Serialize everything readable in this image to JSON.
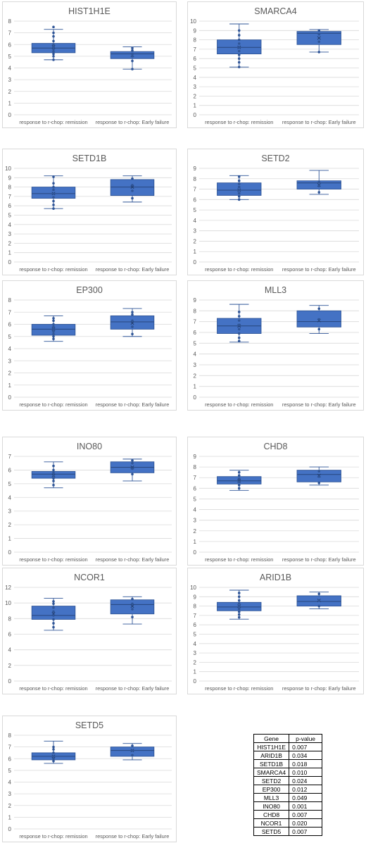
{
  "chart_data": [
    {
      "type": "box",
      "title": "HIST1H1E",
      "categories": [
        "response to r-chop: remission",
        "response to r-chop: Early failure"
      ],
      "ylim": [
        0,
        8
      ],
      "yticks": [
        0,
        1,
        2,
        3,
        4,
        5,
        6,
        7,
        8
      ],
      "boxes": [
        {
          "min": 4.7,
          "q1": 5.3,
          "median": 5.7,
          "q3": 6.1,
          "max": 7.3,
          "mean": 5.8,
          "points": [
            4.7,
            5.0,
            5.2,
            5.4,
            5.6,
            5.8,
            6.0,
            6.3,
            6.7,
            7.0,
            7.5
          ]
        },
        {
          "min": 3.9,
          "q1": 4.8,
          "median": 5.2,
          "q3": 5.4,
          "max": 5.8,
          "mean": 5.1,
          "points": [
            3.9,
            4.6,
            5.0,
            5.2,
            5.5,
            5.7
          ]
        }
      ]
    },
    {
      "type": "box",
      "title": "SMARCA4",
      "categories": [
        "response to r-chop: remission",
        "response to r-chop: Early failure"
      ],
      "ylim": [
        0,
        10
      ],
      "yticks": [
        0,
        1,
        2,
        3,
        4,
        5,
        6,
        7,
        8,
        9,
        10
      ],
      "boxes": [
        {
          "min": 5.1,
          "q1": 6.5,
          "median": 7.2,
          "q3": 8.0,
          "max": 9.7,
          "mean": 7.2,
          "points": [
            5.1,
            5.6,
            6.0,
            6.4,
            6.8,
            7.2,
            7.6,
            8.0,
            8.5,
            9.0
          ]
        },
        {
          "min": 6.7,
          "q1": 7.5,
          "median": 8.7,
          "q3": 8.9,
          "max": 9.1,
          "mean": 8.2,
          "points": [
            6.7,
            7.8,
            8.6,
            9.0
          ]
        }
      ]
    },
    {
      "type": "box",
      "title": "SETD1B",
      "categories": [
        "response to r-chop: remission",
        "response to r-chop: Early failure"
      ],
      "ylim": [
        0,
        10
      ],
      "yticks": [
        0,
        1,
        2,
        3,
        4,
        5,
        6,
        7,
        8,
        9,
        10
      ],
      "boxes": [
        {
          "min": 5.7,
          "q1": 6.8,
          "median": 7.3,
          "q3": 8.0,
          "max": 9.2,
          "mean": 7.3,
          "points": [
            5.7,
            6.1,
            6.5,
            6.9,
            7.3,
            7.7,
            8.0,
            8.4,
            9.1
          ]
        },
        {
          "min": 6.4,
          "q1": 7.1,
          "median": 8.0,
          "q3": 8.8,
          "max": 9.2,
          "mean": 8.0,
          "points": [
            6.8,
            7.6,
            8.2,
            8.9
          ]
        }
      ]
    },
    {
      "type": "box",
      "title": "SETD2",
      "categories": [
        "response to r-chop: remission",
        "response to r-chop: Early failure"
      ],
      "ylim": [
        0,
        9
      ],
      "yticks": [
        0,
        1,
        2,
        3,
        4,
        5,
        6,
        7,
        8,
        9
      ],
      "boxes": [
        {
          "min": 6.0,
          "q1": 6.4,
          "median": 6.9,
          "q3": 7.6,
          "max": 8.3,
          "mean": 6.9,
          "points": [
            6.0,
            6.3,
            6.6,
            6.9,
            7.2,
            7.5,
            7.8,
            8.2
          ]
        },
        {
          "min": 6.5,
          "q1": 7.0,
          "median": 7.6,
          "q3": 7.8,
          "max": 8.8,
          "mean": 7.4,
          "points": [
            6.7,
            7.3,
            7.7
          ]
        }
      ]
    },
    {
      "type": "box",
      "title": "EP300",
      "categories": [
        "response to r-chop: remission",
        "response to r-chop: Early failure"
      ],
      "ylim": [
        0,
        8
      ],
      "yticks": [
        0,
        1,
        2,
        3,
        4,
        5,
        6,
        7,
        8
      ],
      "boxes": [
        {
          "min": 4.6,
          "q1": 5.1,
          "median": 5.6,
          "q3": 6.0,
          "max": 6.7,
          "mean": 5.6,
          "points": [
            4.8,
            5.0,
            5.2,
            5.4,
            5.6,
            5.8,
            6.0,
            6.3,
            6.5
          ]
        },
        {
          "min": 5.0,
          "q1": 5.6,
          "median": 6.2,
          "q3": 6.7,
          "max": 7.3,
          "mean": 6.1,
          "points": [
            5.2,
            5.8,
            6.3,
            6.8,
            7.0
          ]
        }
      ]
    },
    {
      "type": "box",
      "title": "MLL3",
      "categories": [
        "response to r-chop: remission",
        "response to r-chop: Early failure"
      ],
      "ylim": [
        0,
        9
      ],
      "yticks": [
        0,
        1,
        2,
        3,
        4,
        5,
        6,
        7,
        8,
        9
      ],
      "boxes": [
        {
          "min": 5.1,
          "q1": 5.9,
          "median": 6.6,
          "q3": 7.3,
          "max": 8.6,
          "mean": 6.6,
          "points": [
            5.2,
            5.5,
            5.9,
            6.3,
            6.7,
            7.1,
            7.5,
            7.9
          ]
        },
        {
          "min": 5.9,
          "q1": 6.5,
          "median": 7.0,
          "q3": 8.0,
          "max": 8.5,
          "mean": 7.1,
          "points": [
            6.3,
            7.2,
            8.2
          ]
        }
      ]
    },
    {
      "type": "box",
      "title": "INO80",
      "categories": [
        "response to r-chop: remission",
        "response to r-chop: Early failure"
      ],
      "ylim": [
        0,
        7
      ],
      "yticks": [
        0,
        1,
        2,
        3,
        4,
        5,
        6,
        7
      ],
      "boxes": [
        {
          "min": 4.7,
          "q1": 5.4,
          "median": 5.7,
          "q3": 5.9,
          "max": 6.6,
          "mean": 5.6,
          "points": [
            4.9,
            5.2,
            5.4,
            5.6,
            5.8,
            6.0,
            6.3
          ]
        },
        {
          "min": 5.2,
          "q1": 5.8,
          "median": 6.2,
          "q3": 6.6,
          "max": 6.8,
          "mean": 6.2,
          "points": [
            5.7,
            6.1,
            6.5,
            6.7
          ]
        }
      ]
    },
    {
      "type": "box",
      "title": "CHD8",
      "categories": [
        "response to r-chop: remission",
        "response to r-chop: Early failure"
      ],
      "ylim": [
        0,
        9
      ],
      "yticks": [
        0,
        1,
        2,
        3,
        4,
        5,
        6,
        7,
        8,
        9
      ],
      "boxes": [
        {
          "min": 5.8,
          "q1": 6.4,
          "median": 6.7,
          "q3": 7.1,
          "max": 7.7,
          "mean": 6.7,
          "points": [
            6.0,
            6.3,
            6.6,
            6.9,
            7.2,
            7.5
          ]
        },
        {
          "min": 6.3,
          "q1": 6.6,
          "median": 7.3,
          "q3": 7.7,
          "max": 8.0,
          "mean": 7.2,
          "points": [
            6.5,
            7.1,
            7.6
          ]
        }
      ]
    },
    {
      "type": "box",
      "title": "NCOR1",
      "categories": [
        "response to r-chop: remission",
        "response to r-chop: Early failure"
      ],
      "ylim": [
        0,
        12
      ],
      "yticks": [
        0,
        2,
        4,
        6,
        8,
        10,
        12
      ],
      "boxes": [
        {
          "min": 6.5,
          "q1": 7.9,
          "median": 8.4,
          "q3": 9.6,
          "max": 10.6,
          "mean": 8.6,
          "points": [
            6.9,
            7.4,
            7.9,
            8.4,
            8.9,
            9.4,
            9.9,
            10.2
          ]
        },
        {
          "min": 7.3,
          "q1": 8.6,
          "median": 9.8,
          "q3": 10.4,
          "max": 10.8,
          "mean": 9.6,
          "points": [
            8.2,
            9.2,
            9.9,
            10.5
          ]
        }
      ]
    },
    {
      "type": "box",
      "title": "ARID1B",
      "categories": [
        "response to r-chop: remission",
        "response to r-chop: Early failure"
      ],
      "ylim": [
        0,
        10
      ],
      "yticks": [
        0,
        1,
        2,
        3,
        4,
        5,
        6,
        7,
        8,
        9,
        10
      ],
      "boxes": [
        {
          "min": 6.6,
          "q1": 7.5,
          "median": 7.9,
          "q3": 8.4,
          "max": 9.7,
          "mean": 8.0,
          "points": [
            6.8,
            7.1,
            7.4,
            7.7,
            8.0,
            8.3,
            8.6,
            9.0,
            9.4
          ]
        },
        {
          "min": 7.7,
          "q1": 8.0,
          "median": 8.5,
          "q3": 9.1,
          "max": 9.5,
          "mean": 8.6,
          "points": [
            8.0,
            8.6,
            9.3
          ]
        }
      ]
    },
    {
      "type": "box",
      "title": "SETD5",
      "categories": [
        "response to r-chop: remission",
        "response to r-chop: Early failure"
      ],
      "ylim": [
        0,
        8
      ],
      "yticks": [
        0,
        1,
        2,
        3,
        4,
        5,
        6,
        7,
        8
      ],
      "boxes": [
        {
          "min": 5.6,
          "q1": 5.9,
          "median": 6.2,
          "q3": 6.5,
          "max": 7.5,
          "mean": 6.2,
          "points": [
            5.8,
            6.0,
            6.2,
            6.5,
            6.8,
            7.0
          ]
        },
        {
          "min": 5.9,
          "q1": 6.2,
          "median": 6.7,
          "q3": 7.0,
          "max": 7.3,
          "mean": 6.7,
          "points": [
            6.3,
            6.7,
            7.1
          ]
        }
      ]
    }
  ],
  "pvalue_table": {
    "headers": [
      "Gene",
      "p-value"
    ],
    "rows": [
      [
        "HIST1H1E",
        "0.007"
      ],
      [
        "ARID1B",
        "0.034"
      ],
      [
        "SETD1B",
        "0.018"
      ],
      [
        "SMARCA4",
        "0.010"
      ],
      [
        "SETD2",
        "0.024"
      ],
      [
        "EP300",
        "0.012"
      ],
      [
        "MLL3",
        "0.049"
      ],
      [
        "INO80",
        "0.001"
      ],
      [
        "CHD8",
        "0.007"
      ],
      [
        "NCOR1",
        "0.020"
      ],
      [
        "SETD5",
        "0.007"
      ]
    ]
  },
  "colors": {
    "box_fill": "#4472c4",
    "box_edge": "#2f5597",
    "point": "#2f5597",
    "grid": "#d9d9d9",
    "text": "#595959"
  }
}
